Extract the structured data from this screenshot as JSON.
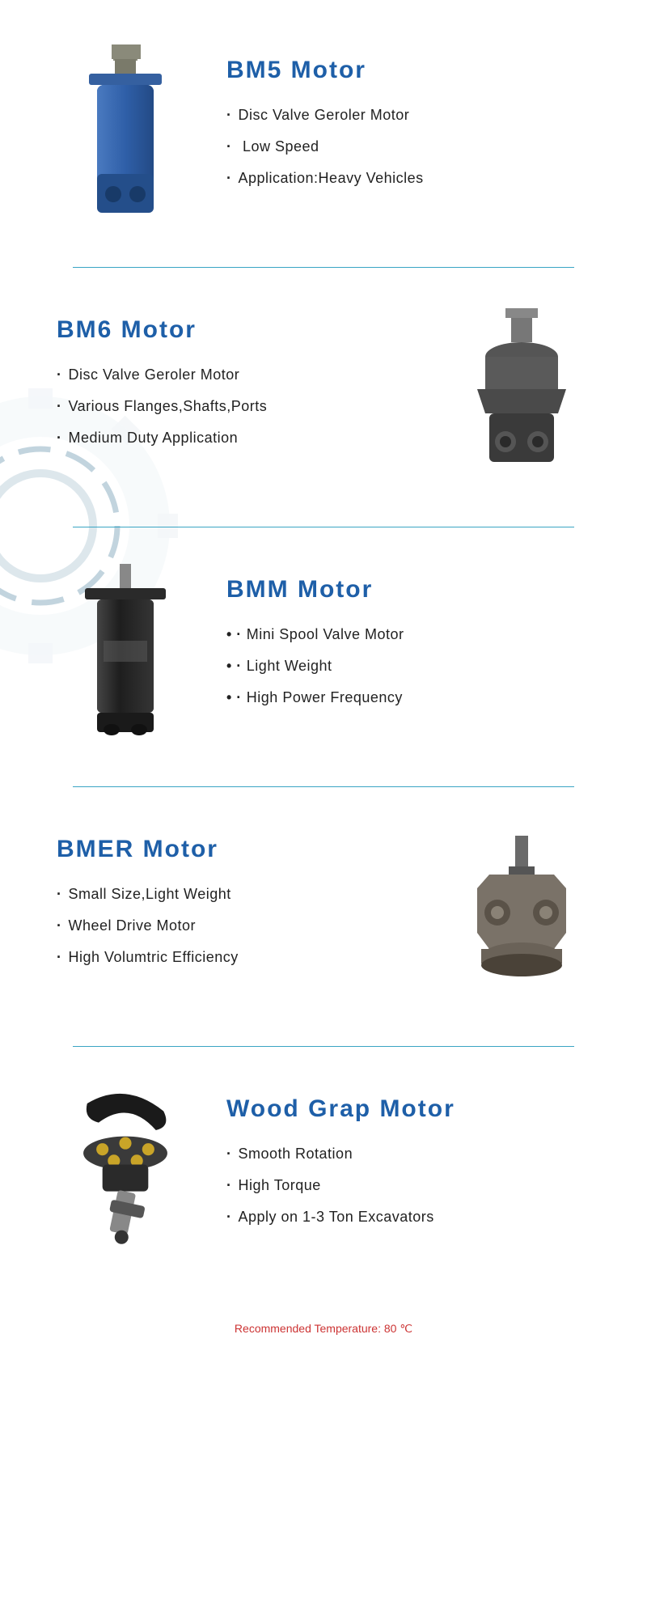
{
  "colors": {
    "title": "#1e5fa8",
    "divider": "#3aa5c4",
    "text": "#222222",
    "footer": "#cc3333",
    "gear_light": "#e8eef2",
    "gear_dash": "#9db8c8"
  },
  "sections": [
    {
      "id": "bm5",
      "layout": "img-left",
      "title": "BM5 Motor",
      "bullets": [
        "Disc Valve Geroler Motor",
        " Low Speed",
        "Application:Heavy Vehicles"
      ],
      "image": {
        "type": "motor-blue-tall",
        "label": "BM5"
      }
    },
    {
      "id": "bm6",
      "layout": "img-right",
      "title": "BM6 Motor",
      "bullets": [
        "Disc Valve Geroler Motor",
        "Various Flanges,Shafts,Ports",
        "Medium Duty Application"
      ],
      "image": {
        "type": "motor-dark-flange",
        "label": "BM6"
      }
    },
    {
      "id": "bmm",
      "layout": "img-left",
      "title": "BMM Motor",
      "double_bullet": true,
      "bullets": [
        "Mini Spool Valve Motor",
        "Light Weight",
        "High Power Frequency"
      ],
      "image": {
        "type": "motor-black-cylinder",
        "label": "BMM"
      }
    },
    {
      "id": "bmer",
      "layout": "img-right",
      "title": "BMER Motor",
      "bullets": [
        "Small Size,Light Weight",
        "Wheel Drive Motor",
        "High Volumtric Efficiency"
      ],
      "image": {
        "type": "motor-steel-round",
        "label": "BMER"
      }
    },
    {
      "id": "woodgrap",
      "layout": "img-left",
      "title": "Wood Grap Motor",
      "bullets": [
        "Smooth Rotation",
        "High Torque",
        "Apply on 1-3 Ton Excavators"
      ],
      "image": {
        "type": "wood-grap-rotator",
        "label": "Wood Grap"
      }
    }
  ],
  "footer": "Recommended Temperature: 80 ℃"
}
